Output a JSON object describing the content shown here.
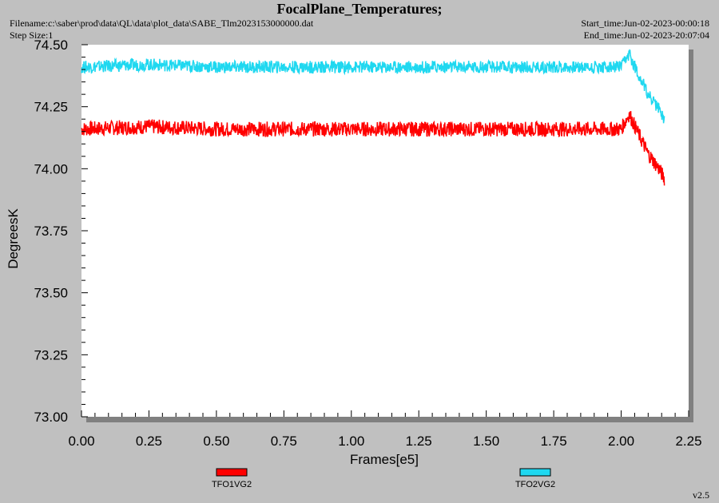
{
  "header": {
    "title": "FocalPlane_Temperatures;",
    "filename": "Filename:c:\\saber\\prod\\data\\QL\\data\\plot_data\\SABE_Tlm2023153000000.dat",
    "step_size": "Step Size:1",
    "start_time": "Start_time:Jun-02-2023-00:00:18",
    "end_time": "End_time:Jun-02-2023-20:07:04"
  },
  "version": "v2.5",
  "chart_data": {
    "type": "line",
    "title": "FocalPlane_Temperatures;",
    "xlabel": "Frames[e5]",
    "ylabel": "DegreesK",
    "xlim": [
      0,
      2.25
    ],
    "ylim": [
      73.0,
      74.5
    ],
    "x_ticks": [
      "0.00",
      "0.25",
      "0.50",
      "0.75",
      "1.00",
      "1.25",
      "1.50",
      "1.75",
      "2.00",
      "2.25"
    ],
    "y_ticks": [
      "73.00",
      "73.25",
      "73.50",
      "73.75",
      "74.00",
      "74.25",
      "74.50"
    ],
    "grid": false,
    "legend_position": "bottom",
    "series": [
      {
        "name": "TFO1VG2",
        "color": "#ff0000",
        "x": [
          0.0,
          0.25,
          0.5,
          0.75,
          1.0,
          1.25,
          1.5,
          1.75,
          1.9,
          2.0,
          2.03,
          2.06,
          2.1,
          2.14,
          2.16
        ],
        "y": [
          74.16,
          74.17,
          74.16,
          74.16,
          74.16,
          74.16,
          74.16,
          74.16,
          74.16,
          74.16,
          74.22,
          74.15,
          74.06,
          74.0,
          73.96
        ],
        "noise": 0.03
      },
      {
        "name": "TFO2VG2",
        "color": "#1fd8f0",
        "x": [
          0.0,
          0.25,
          0.5,
          0.75,
          1.0,
          1.25,
          1.5,
          1.75,
          1.9,
          2.0,
          2.03,
          2.06,
          2.1,
          2.14,
          2.16
        ],
        "y": [
          74.41,
          74.42,
          74.41,
          74.41,
          74.41,
          74.41,
          74.41,
          74.41,
          74.41,
          74.41,
          74.46,
          74.39,
          74.3,
          74.24,
          74.2
        ],
        "noise": 0.025
      }
    ]
  }
}
